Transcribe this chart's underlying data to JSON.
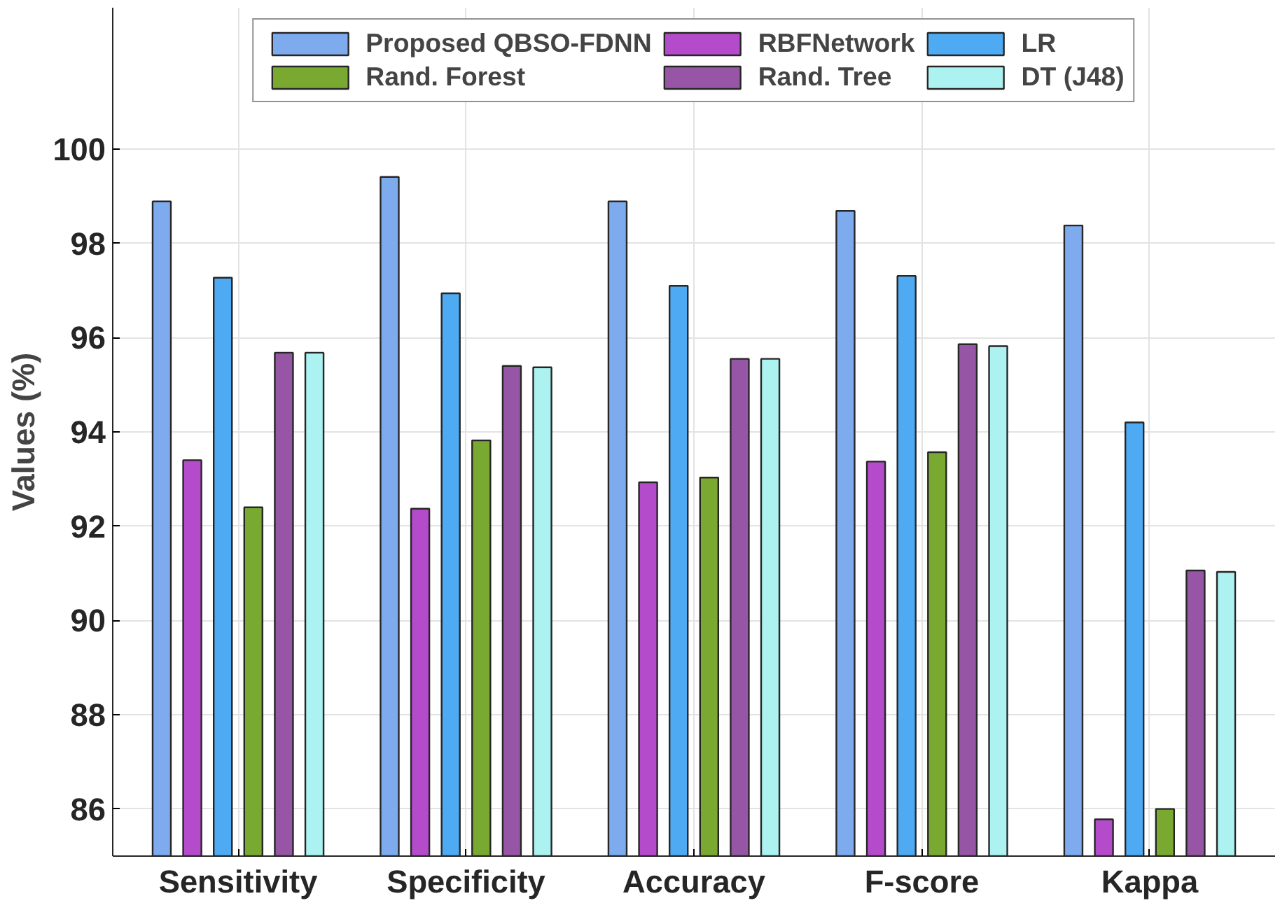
{
  "chart_data": {
    "type": "bar",
    "ylabel": "Values (%)",
    "categories": [
      "Sensitivity",
      "Specificity",
      "Accuracy",
      "F-score",
      "Kappa"
    ],
    "series": [
      {
        "name": "Proposed QBSO-FDNN",
        "color": "#7eabee",
        "values": [
          98.89,
          99.41,
          98.89,
          98.69,
          98.38
        ]
      },
      {
        "name": "RBFNetwork",
        "color": "#b44bca",
        "values": [
          93.4,
          92.37,
          92.93,
          93.37,
          85.78
        ]
      },
      {
        "name": "LR",
        "color": "#4eaaf2",
        "values": [
          97.27,
          96.94,
          97.1,
          97.31,
          94.2
        ]
      },
      {
        "name": "Rand. Forest",
        "color": "#7aa932",
        "values": [
          92.4,
          93.82,
          93.03,
          93.57,
          86.0
        ]
      },
      {
        "name": "Rand. Tree",
        "color": "#9656a5",
        "values": [
          95.68,
          95.4,
          95.55,
          95.86,
          91.06
        ]
      },
      {
        "name": "DT (J48)",
        "color": "#acf2f0",
        "values": [
          95.68,
          95.37,
          95.55,
          95.82,
          91.03
        ]
      }
    ],
    "ylim": [
      85,
      103
    ],
    "yticks": [
      86,
      88,
      90,
      92,
      94,
      96,
      98,
      100
    ],
    "grid": true,
    "legend": "top"
  }
}
